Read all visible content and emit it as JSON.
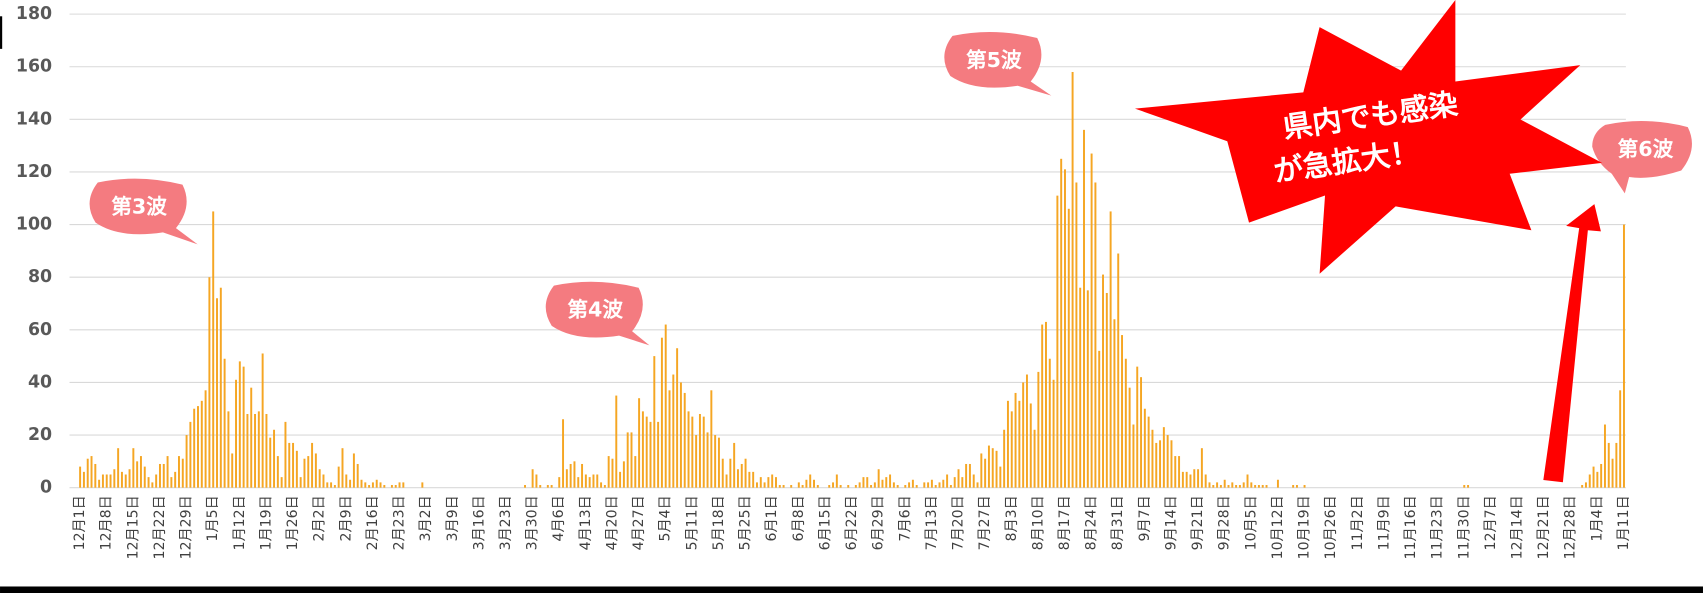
{
  "chart_data": {
    "type": "bar",
    "color": "#f5a623",
    "grid": true,
    "ylim": [
      0,
      180
    ],
    "yticks": [
      0,
      20,
      40,
      60,
      80,
      100,
      120,
      140,
      160,
      180
    ],
    "annotations": [
      "第3波",
      "第4波",
      "第5波",
      "第6波",
      "県内でも感染",
      "が急拡大！"
    ],
    "categories": [
      "12月1日",
      null,
      null,
      null,
      null,
      null,
      null,
      "12月8日",
      null,
      null,
      null,
      null,
      null,
      null,
      "12月15日",
      null,
      null,
      null,
      null,
      null,
      null,
      "12月22日",
      null,
      null,
      null,
      null,
      null,
      null,
      "12月29日",
      null,
      null,
      null,
      null,
      null,
      null,
      "1月5日",
      null,
      null,
      null,
      null,
      null,
      null,
      "1月12日",
      null,
      null,
      null,
      null,
      null,
      null,
      "1月19日",
      null,
      null,
      null,
      null,
      null,
      null,
      "1月26日",
      null,
      null,
      null,
      null,
      null,
      null,
      "2月2日",
      null,
      null,
      null,
      null,
      null,
      null,
      "2月9日",
      null,
      null,
      null,
      null,
      null,
      null,
      "2月16日",
      null,
      null,
      null,
      null,
      null,
      null,
      "2月23日",
      null,
      null,
      null,
      null,
      null,
      null,
      "3月2日",
      null,
      null,
      null,
      null,
      null,
      null,
      "3月9日",
      null,
      null,
      null,
      null,
      null,
      null,
      "3月16日",
      null,
      null,
      null,
      null,
      null,
      null,
      "3月23日",
      null,
      null,
      null,
      null,
      null,
      null,
      "3月30日",
      null,
      null,
      null,
      null,
      null,
      null,
      "4月6日",
      null,
      null,
      null,
      null,
      null,
      null,
      "4月13日",
      null,
      null,
      null,
      null,
      null,
      null,
      "4月20日",
      null,
      null,
      null,
      null,
      null,
      null,
      "4月27日",
      null,
      null,
      null,
      null,
      null,
      null,
      "5月4日",
      null,
      null,
      null,
      null,
      null,
      null,
      "5月11日",
      null,
      null,
      null,
      null,
      null,
      null,
      "5月18日",
      null,
      null,
      null,
      null,
      null,
      null,
      "5月25日",
      null,
      null,
      null,
      null,
      null,
      null,
      "6月1日",
      null,
      null,
      null,
      null,
      null,
      null,
      "6月8日",
      null,
      null,
      null,
      null,
      null,
      null,
      "6月15日",
      null,
      null,
      null,
      null,
      null,
      null,
      "6月22日",
      null,
      null,
      null,
      null,
      null,
      null,
      "6月29日",
      null,
      null,
      null,
      null,
      null,
      null,
      "7月6日",
      null,
      null,
      null,
      null,
      null,
      null,
      "7月13日",
      null,
      null,
      null,
      null,
      null,
      null,
      "7月20日",
      null,
      null,
      null,
      null,
      null,
      null,
      "7月27日",
      null,
      null,
      null,
      null,
      null,
      null,
      "8月3日",
      null,
      null,
      null,
      null,
      null,
      null,
      "8月10日",
      null,
      null,
      null,
      null,
      null,
      null,
      "8月17日",
      null,
      null,
      null,
      null,
      null,
      null,
      "8月24日",
      null,
      null,
      null,
      null,
      null,
      null,
      "8月31日",
      null,
      null,
      null,
      null,
      null,
      null,
      "9月7日",
      null,
      null,
      null,
      null,
      null,
      null,
      "9月14日",
      null,
      null,
      null,
      null,
      null,
      null,
      "9月21日",
      null,
      null,
      null,
      null,
      null,
      null,
      "9月28日",
      null,
      null,
      null,
      null,
      null,
      null,
      "10月5日",
      null,
      null,
      null,
      null,
      null,
      null,
      "10月12日",
      null,
      null,
      null,
      null,
      null,
      null,
      "10月19日",
      null,
      null,
      null,
      null,
      null,
      null,
      "10月26日",
      null,
      null,
      null,
      null,
      null,
      null,
      "11月2日",
      null,
      null,
      null,
      null,
      null,
      null,
      "11月9日",
      null,
      null,
      null,
      null,
      null,
      null,
      "11月16日",
      null,
      null,
      null,
      null,
      null,
      null,
      "11月23日",
      null,
      null,
      null,
      null,
      null,
      null,
      "11月30日",
      null,
      null,
      null,
      null,
      null,
      null,
      "12月7日",
      null,
      null,
      null,
      null,
      null,
      null,
      "12月14日",
      null,
      null,
      null,
      null,
      null,
      null,
      "12月21日",
      null,
      null,
      null,
      null,
      null,
      null,
      "12月28日",
      null,
      null,
      null,
      null,
      null,
      null,
      "1月4日",
      null,
      null,
      null,
      null,
      null,
      null,
      "1月11日"
    ],
    "values": [
      8,
      6,
      11,
      12,
      9,
      3,
      5,
      5,
      5,
      7,
      15,
      6,
      5,
      7,
      15,
      10,
      12,
      8,
      4,
      2,
      5,
      9,
      9,
      12,
      4,
      6,
      12,
      11,
      20,
      25,
      30,
      31,
      33,
      37,
      80,
      105,
      72,
      76,
      49,
      29,
      13,
      41,
      48,
      46,
      28,
      38,
      28,
      29,
      51,
      28,
      19,
      22,
      12,
      4,
      25,
      17,
      17,
      14,
      4,
      11,
      12,
      17,
      13,
      7,
      5,
      2,
      2,
      1,
      8,
      15,
      5,
      3,
      13,
      9,
      3,
      2,
      1,
      2,
      3,
      2,
      1,
      0,
      1,
      1,
      2,
      2,
      0,
      0,
      0,
      0,
      2,
      0,
      0,
      0,
      0,
      0,
      0,
      0,
      0,
      0,
      0,
      0,
      0,
      0,
      0,
      0,
      0,
      0,
      0,
      0,
      0,
      0,
      0,
      0,
      0,
      0,
      0,
      1,
      0,
      7,
      5,
      1,
      0,
      1,
      1,
      0,
      4,
      26,
      7,
      9,
      10,
      4,
      9,
      5,
      4,
      5,
      5,
      2,
      1,
      12,
      11,
      35,
      6,
      10,
      21,
      21,
      12,
      34,
      29,
      27,
      25,
      50,
      25,
      57,
      62,
      37,
      43,
      53,
      40,
      36,
      29,
      27,
      20,
      28,
      27,
      21,
      37,
      20,
      19,
      11,
      5,
      11,
      17,
      7,
      9,
      11,
      6,
      6,
      2,
      4,
      2,
      4,
      5,
      4,
      1,
      1,
      0,
      1,
      0,
      2,
      1,
      3,
      5,
      3,
      1,
      0,
      0,
      1,
      2,
      5,
      1,
      0,
      1,
      0,
      1,
      2,
      4,
      4,
      1,
      2,
      7,
      3,
      4,
      5,
      2,
      1,
      0,
      1,
      2,
      3,
      1,
      0,
      2,
      2,
      3,
      1,
      2,
      3,
      5,
      1,
      4,
      7,
      4,
      9,
      9,
      5,
      2,
      13,
      11,
      16,
      15,
      14,
      8,
      22,
      33,
      29,
      36,
      33,
      40,
      43,
      32,
      22,
      44,
      62,
      63,
      49,
      41,
      111,
      125,
      121,
      106,
      158,
      116,
      76,
      136,
      75,
      127,
      116,
      52,
      81,
      74,
      105,
      64,
      89,
      58,
      49,
      38,
      24,
      46,
      42,
      30,
      27,
      22,
      17,
      18,
      23,
      20,
      18,
      12,
      12,
      6,
      6,
      5,
      7,
      7,
      15,
      5,
      2,
      1,
      2,
      1,
      3,
      1,
      2,
      1,
      1,
      2,
      5,
      2,
      1,
      1,
      1,
      1,
      0,
      0,
      3,
      0,
      0,
      0,
      1,
      1,
      0,
      1,
      0,
      0,
      0,
      0,
      0,
      0,
      0,
      0,
      0,
      0,
      0,
      0,
      0,
      0,
      0,
      0,
      0,
      0,
      0,
      0,
      0,
      0,
      0,
      0,
      0,
      0,
      0,
      0,
      0,
      0,
      0,
      0,
      0,
      0,
      0,
      0,
      0,
      0,
      0,
      0,
      0,
      1,
      1,
      0,
      0,
      0,
      0,
      0,
      0,
      0,
      0,
      0,
      0,
      0,
      0,
      0,
      0,
      0,
      0,
      0,
      0,
      0,
      0,
      0,
      0,
      0,
      0,
      0,
      0,
      0,
      0,
      0,
      1,
      2,
      5,
      8,
      6,
      9,
      24,
      17,
      11,
      17,
      37,
      100
    ]
  }
}
